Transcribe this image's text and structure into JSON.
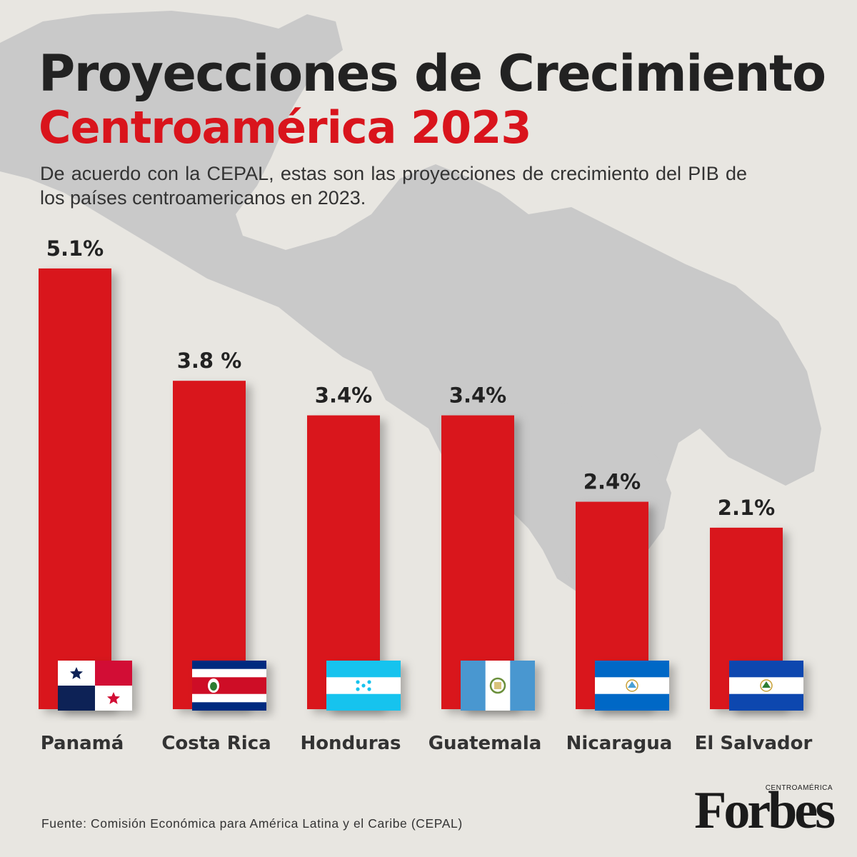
{
  "header": {
    "title": "Proyecciones de Crecimiento",
    "title_highlight": "Centroamérica 2023",
    "subtitle": "De acuerdo con la CEPAL, estas son las proyecciones de crecimiento del PIB de los países centroamericanos en 2023."
  },
  "colors": {
    "bar": "#d9141c",
    "highlight": "#d9141c",
    "text": "#222222",
    "background": "#e8e6e1",
    "map": "#c9c9c9"
  },
  "chart_data": {
    "type": "bar",
    "categories": [
      "Panamá",
      "Costa Rica",
      "Honduras",
      "Guatemala",
      "Nicaragua",
      "El Salvador"
    ],
    "values": [
      5.1,
      3.8,
      3.4,
      3.4,
      2.4,
      2.1
    ],
    "data_labels": [
      "5.1%",
      "3.8 %",
      "3.4%",
      "3.4%",
      "2.4%",
      "2.1%"
    ],
    "unit": "%",
    "flag_icons": [
      "panama-flag-icon",
      "costa-rica-flag-icon",
      "honduras-flag-icon",
      "guatemala-flag-icon",
      "nicaragua-flag-icon",
      "el-salvador-flag-icon"
    ],
    "axes_shown": false,
    "grid": false,
    "legend": "none"
  },
  "footer": {
    "source": "Fuente: Comisión Económica para América Latina y el Caribe (CEPAL)",
    "brand_sub": "CENTROAMÉRICA",
    "brand_name": "Forbes"
  }
}
